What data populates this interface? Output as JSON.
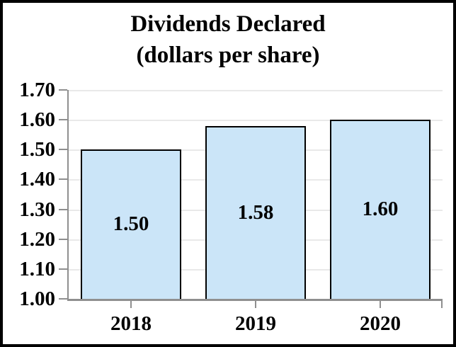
{
  "title": {
    "line1": "Dividends Declared",
    "line2": "(dollars per share)"
  },
  "chart_data": {
    "type": "bar",
    "title": "Dividends Declared (dollars per share)",
    "categories": [
      "2018",
      "2019",
      "2020"
    ],
    "values": [
      1.5,
      1.58,
      1.6
    ],
    "bar_labels": [
      "1.50",
      "1.58",
      "1.60"
    ],
    "xlabel": "",
    "ylabel": "",
    "ylim": [
      1.0,
      1.7
    ],
    "ytick_step": 0.1,
    "ytick_labels": [
      "1.00",
      "1.10",
      "1.20",
      "1.30",
      "1.40",
      "1.50",
      "1.60",
      "1.70"
    ],
    "grid": true,
    "legend": false,
    "layout_hints": {
      "bar_labels_inside": true,
      "ticks_outside": true,
      "gridlines_horizontal": true
    },
    "colors": {
      "background": "#ffffff",
      "frame_border": "#000000",
      "bar_fill": "#cbe5f8",
      "bar_border": "#000000",
      "gridline": "#e9e9e9",
      "axis": "#8f8f8f",
      "text": "#000000"
    }
  }
}
